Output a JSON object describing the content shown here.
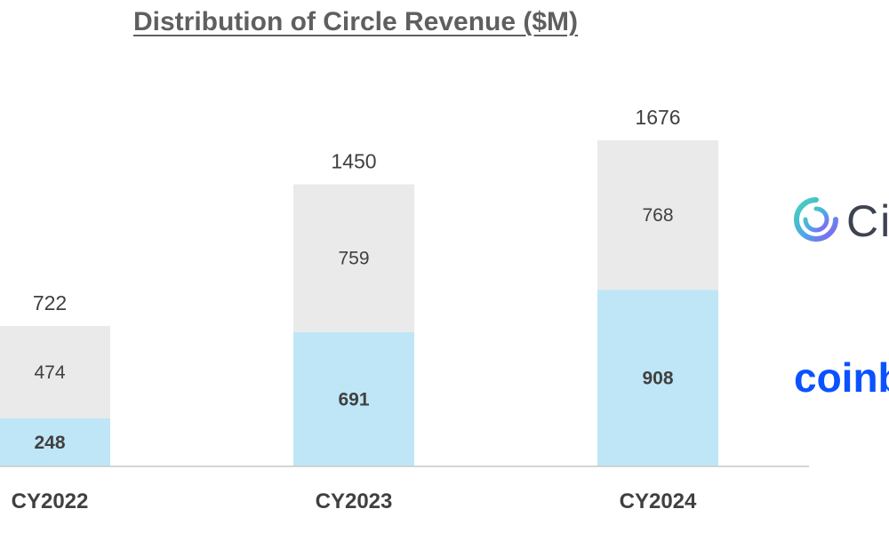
{
  "chart_data": {
    "type": "bar",
    "stacked": true,
    "title": "Distribution of Circle Revenue ($M)",
    "categories": [
      "CY2022",
      "CY2023",
      "CY2024"
    ],
    "series": [
      {
        "values": [
          248,
          691,
          908
        ],
        "color": "#bfe6f6",
        "label_weight": "bold"
      },
      {
        "values": [
          474,
          759,
          768
        ],
        "color": "#eaeaea",
        "label_weight": "normal"
      }
    ],
    "totals": [
      722,
      1450,
      1676
    ],
    "ylim": [
      0,
      1676
    ],
    "grid": false,
    "legend": "logos on right"
  },
  "logos": {
    "circle": {
      "text": "Ci",
      "icon": "circle-logo-icon",
      "color": "#3d4450"
    },
    "coinbase": {
      "text": "coinb",
      "color": "#0b52ff"
    }
  }
}
